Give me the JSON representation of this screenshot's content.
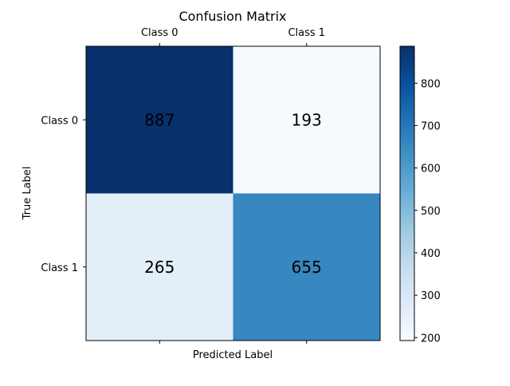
{
  "chart_data": {
    "type": "heatmap",
    "title": "Confusion Matrix",
    "xlabel": "Predicted Label",
    "ylabel": "True Label",
    "x_categories": [
      "Class 0",
      "Class 1"
    ],
    "y_categories": [
      "Class 0",
      "Class 1"
    ],
    "x_tick_position": "top",
    "values": [
      [
        887,
        193
      ],
      [
        265,
        655
      ]
    ],
    "colormap": "Blues",
    "colorbar": {
      "min": 193,
      "max": 887,
      "ticks": [
        200,
        300,
        400,
        500,
        600,
        700,
        800
      ],
      "tick_labels": [
        "200",
        "300",
        "400",
        "500",
        "600",
        "700",
        "800"
      ]
    },
    "grid": false
  }
}
